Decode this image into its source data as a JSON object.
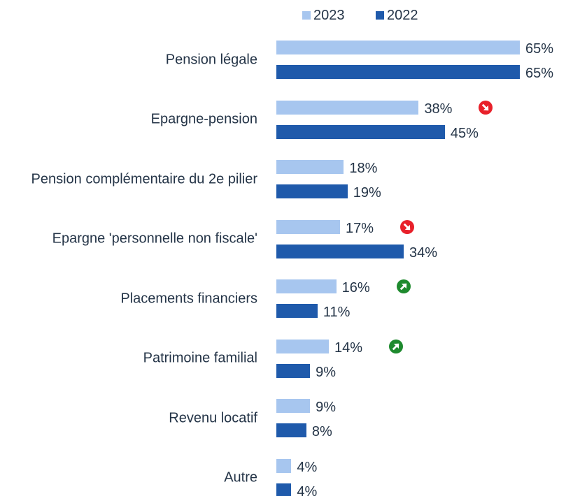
{
  "chart_data": {
    "type": "bar",
    "orientation": "horizontal",
    "categories": [
      "Pension légale",
      "Epargne-pension",
      "Pension complémentaire du 2e pilier",
      "Epargne 'personnelle non fiscale'",
      "Placements financiers",
      "Patrimoine familial",
      "Revenu locatif",
      "Autre"
    ],
    "series": [
      {
        "name": "2023",
        "color": "#a7c6ef",
        "values": [
          65,
          38,
          18,
          17,
          16,
          14,
          9,
          4
        ],
        "value_labels": [
          "65%",
          "38%",
          "18%",
          "17%",
          "16%",
          "14%",
          "9%",
          "4%"
        ]
      },
      {
        "name": "2022",
        "color": "#1f5aab",
        "values": [
          65,
          45,
          19,
          34,
          11,
          9,
          8,
          4
        ],
        "value_labels": [
          "65%",
          "45%",
          "19%",
          "34%",
          "11%",
          "9%",
          "8%",
          "4%"
        ]
      }
    ],
    "trends": [
      null,
      "down",
      null,
      "down",
      "up",
      "up",
      null,
      null
    ],
    "trend_colors": {
      "down": "#e8202a",
      "up": "#1e8a2e"
    },
    "legend": "top"
  }
}
